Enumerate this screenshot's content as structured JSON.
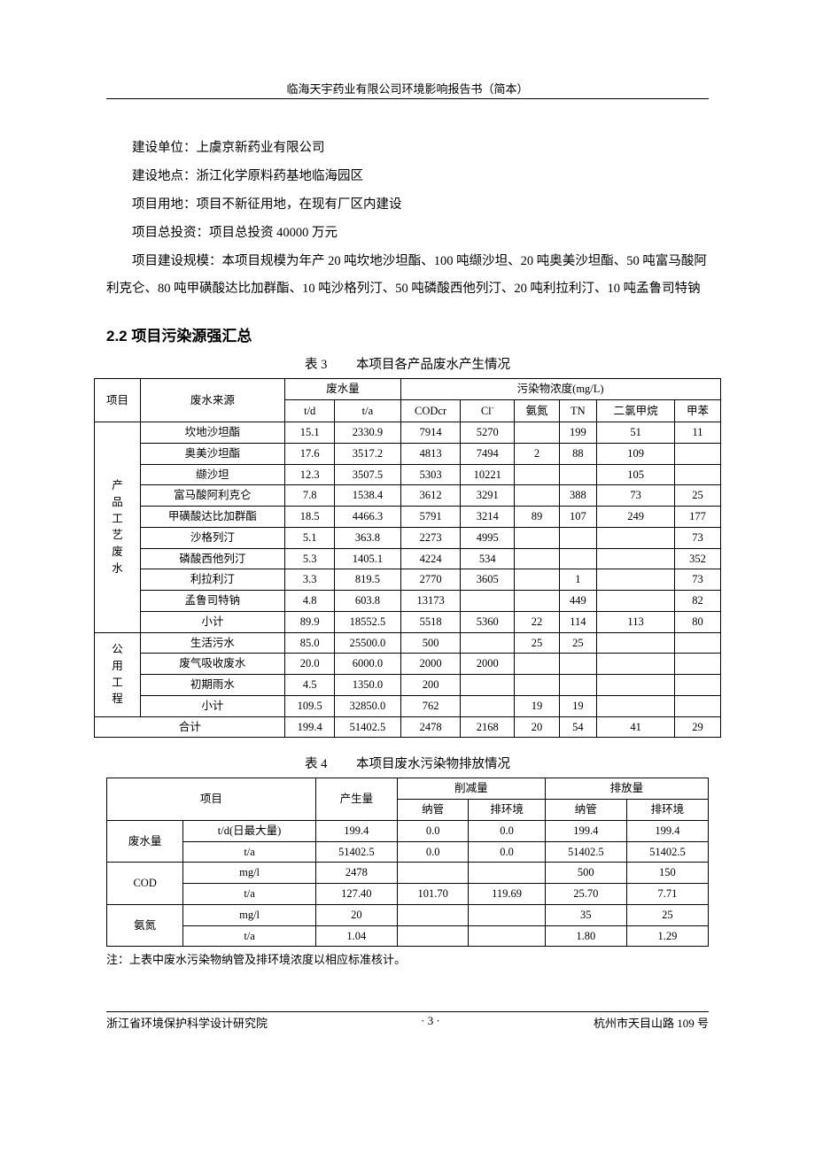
{
  "header": {
    "title": "临海天宇药业有限公司环境影响报告书（简本）"
  },
  "info": {
    "l1": "建设单位：上虞京新药业有限公司",
    "l2": "建设地点：浙江化学原料药基地临海园区",
    "l3": "项目用地：项目不新征用地，在现有厂区内建设",
    "l4": "项目总投资：项目总投资 40000 万元",
    "p1": "项目建设规模：本项目规模为年产 20 吨坎地沙坦酯、100 吨缬沙坦、20 吨奥美沙坦酯、50 吨富马酸阿利克仑、80 吨甲磺酸达比加群酯、10 吨沙格列汀、50 吨磷酸西他列汀、20 吨利拉利汀、10 吨孟鲁司特钠"
  },
  "section": {
    "heading": "2.2 项目污染源强汇总"
  },
  "table3": {
    "no": "表 3",
    "caption": "本项目各产品废水产生情况",
    "h": {
      "c1": "项目",
      "c2": "废水来源",
      "c3": "废水量",
      "c4": "污染物浓度(mg/L)",
      "c3a": "t/d",
      "c3b": "t/a",
      "c4a": "CODcr",
      "c4b": "Cl",
      "c4b_sup": "-",
      "c4c": "氨氮",
      "c4d": "TN",
      "c4e": "二氯甲烷",
      "c4f": "甲苯"
    },
    "groups": {
      "g1": "产品工艺废水",
      "g2": "公用工程",
      "total": "合计"
    },
    "rows": [
      [
        "坎地沙坦酯",
        "15.1",
        "2330.9",
        "7914",
        "5270",
        "",
        "199",
        "51",
        "11"
      ],
      [
        "奥美沙坦酯",
        "17.6",
        "3517.2",
        "4813",
        "7494",
        "2",
        "88",
        "109",
        ""
      ],
      [
        "缬沙坦",
        "12.3",
        "3507.5",
        "5303",
        "10221",
        "",
        "",
        "105",
        ""
      ],
      [
        "富马酸阿利克仑",
        "7.8",
        "1538.4",
        "3612",
        "3291",
        "",
        "388",
        "73",
        "25"
      ],
      [
        "甲磺酸达比加群酯",
        "18.5",
        "4466.3",
        "5791",
        "3214",
        "89",
        "107",
        "249",
        "177"
      ],
      [
        "沙格列汀",
        "5.1",
        "363.8",
        "2273",
        "4995",
        "",
        "",
        "",
        "73"
      ],
      [
        "磷酸西他列汀",
        "5.3",
        "1405.1",
        "4224",
        "534",
        "",
        "",
        "",
        "352"
      ],
      [
        "利拉利汀",
        "3.3",
        "819.5",
        "2770",
        "3605",
        "",
        "1",
        "",
        "73"
      ],
      [
        "孟鲁司特钠",
        "4.8",
        "603.8",
        "13173",
        "",
        "",
        "449",
        "",
        "82"
      ],
      [
        "小计",
        "89.9",
        "18552.5",
        "5518",
        "5360",
        "22",
        "114",
        "113",
        "80"
      ],
      [
        "生活污水",
        "85.0",
        "25500.0",
        "500",
        "",
        "25",
        "25",
        "",
        ""
      ],
      [
        "废气吸收废水",
        "20.0",
        "6000.0",
        "2000",
        "2000",
        "",
        "",
        "",
        ""
      ],
      [
        "初期雨水",
        "4.5",
        "1350.0",
        "200",
        "",
        "",
        "",
        "",
        ""
      ],
      [
        "小计",
        "109.5",
        "32850.0",
        "762",
        "",
        "19",
        "19",
        "",
        ""
      ]
    ],
    "total_row": [
      "199.4",
      "51402.5",
      "2478",
      "2168",
      "20",
      "54",
      "41",
      "29"
    ]
  },
  "table4": {
    "no": "表 4",
    "caption": "本项目废水污染物排放情况",
    "h": {
      "c1": "项目",
      "c2": "产生量",
      "c3": "削减量",
      "c4": "排放量",
      "c3a": "纳管",
      "c3b": "排环境",
      "c4a": "纳管",
      "c4b": "排环境"
    },
    "groups": {
      "g1": "废水量",
      "g2": "COD",
      "g3": "氨氮"
    },
    "rows": [
      [
        "t/d(日最大量)",
        "199.4",
        "0.0",
        "0.0",
        "199.4",
        "199.4"
      ],
      [
        "t/a",
        "51402.5",
        "0.0",
        "0.0",
        "51402.5",
        "51402.5"
      ],
      [
        "mg/l",
        "2478",
        "",
        "",
        "500",
        "150"
      ],
      [
        "t/a",
        "127.40",
        "101.70",
        "119.69",
        "25.70",
        "7.71"
      ],
      [
        "mg/l",
        "20",
        "",
        "",
        "35",
        "25"
      ],
      [
        "t/a",
        "1.04",
        "",
        "",
        "1.80",
        "1.29"
      ]
    ]
  },
  "note": "注：上表中废水污染物纳管及排环境浓度以相应标准核计。",
  "footer": {
    "left": "浙江省环境保护科学设计研究院",
    "center": "· 3 ·",
    "right": "杭州市天目山路 109 号"
  }
}
